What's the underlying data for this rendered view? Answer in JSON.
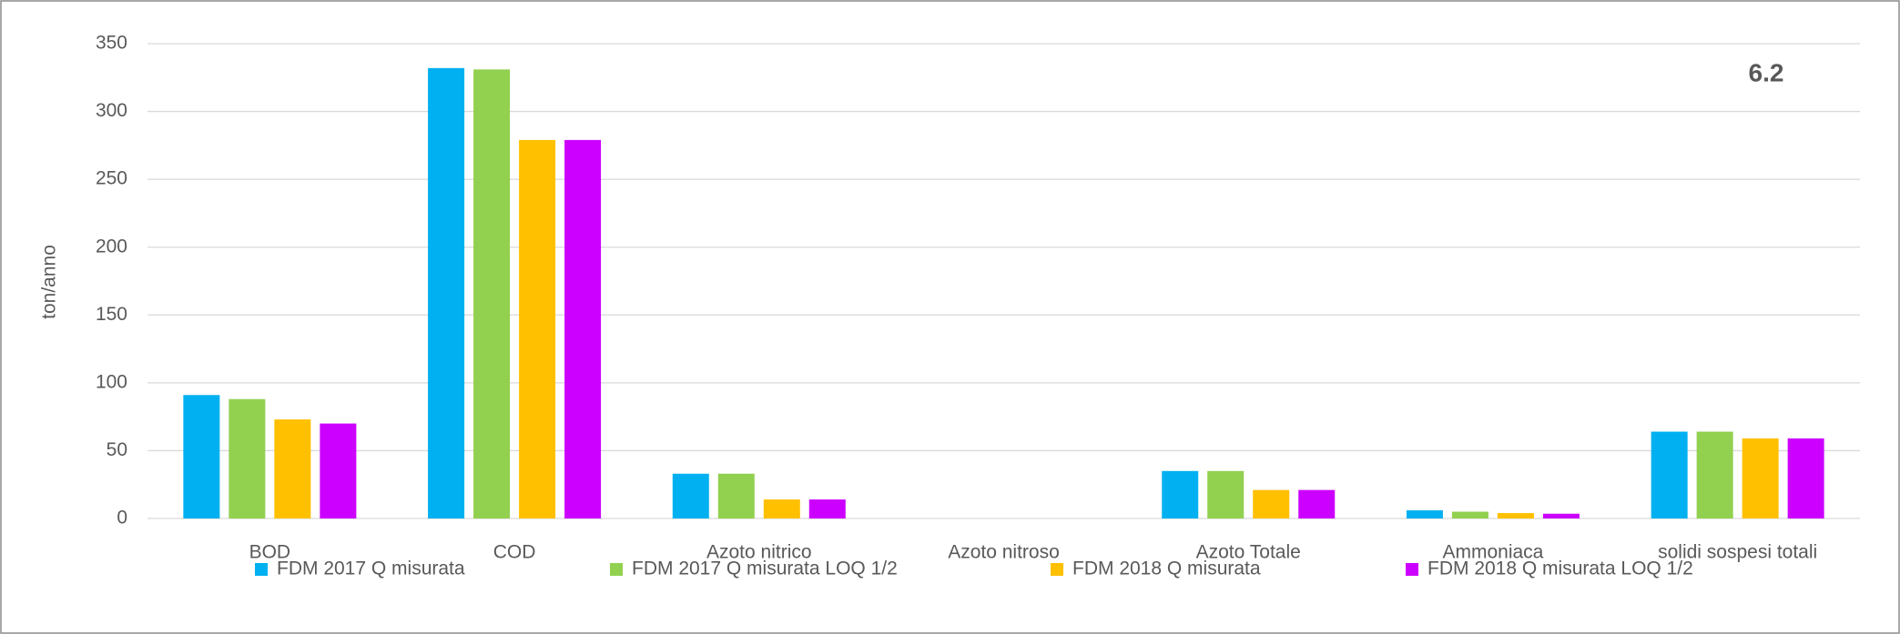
{
  "chart_data": {
    "type": "bar",
    "y_label": "ton/anno",
    "annotation": "6.2",
    "categories": [
      "BOD",
      "COD",
      "Azoto nitrico",
      "Azoto nitroso",
      "Azoto Totale",
      "Ammoniaca",
      "solidi sospesi totali"
    ],
    "series": [
      {
        "name": "FDM 2017 Q misurata",
        "color": "#00b0f0",
        "values": [
          91,
          332,
          33,
          0,
          35,
          6,
          64
        ]
      },
      {
        "name": "FDM 2017 Q misurata LOQ 1/2",
        "color": "#92d050",
        "values": [
          88,
          331,
          33,
          0,
          35,
          5,
          64
        ]
      },
      {
        "name": "FDM 2018 Q misurata",
        "color": "#ffc000",
        "values": [
          73,
          279,
          14,
          0,
          21,
          4,
          59
        ]
      },
      {
        "name": "FDM 2018 Q misurata  LOQ 1/2",
        "color": "#cc00ff",
        "values": [
          70,
          279,
          14,
          0,
          21,
          3.5,
          59
        ]
      }
    ],
    "ylim": [
      0,
      350
    ],
    "yticks": [
      0,
      50,
      100,
      150,
      200,
      250,
      300,
      350
    ],
    "grid": true
  }
}
